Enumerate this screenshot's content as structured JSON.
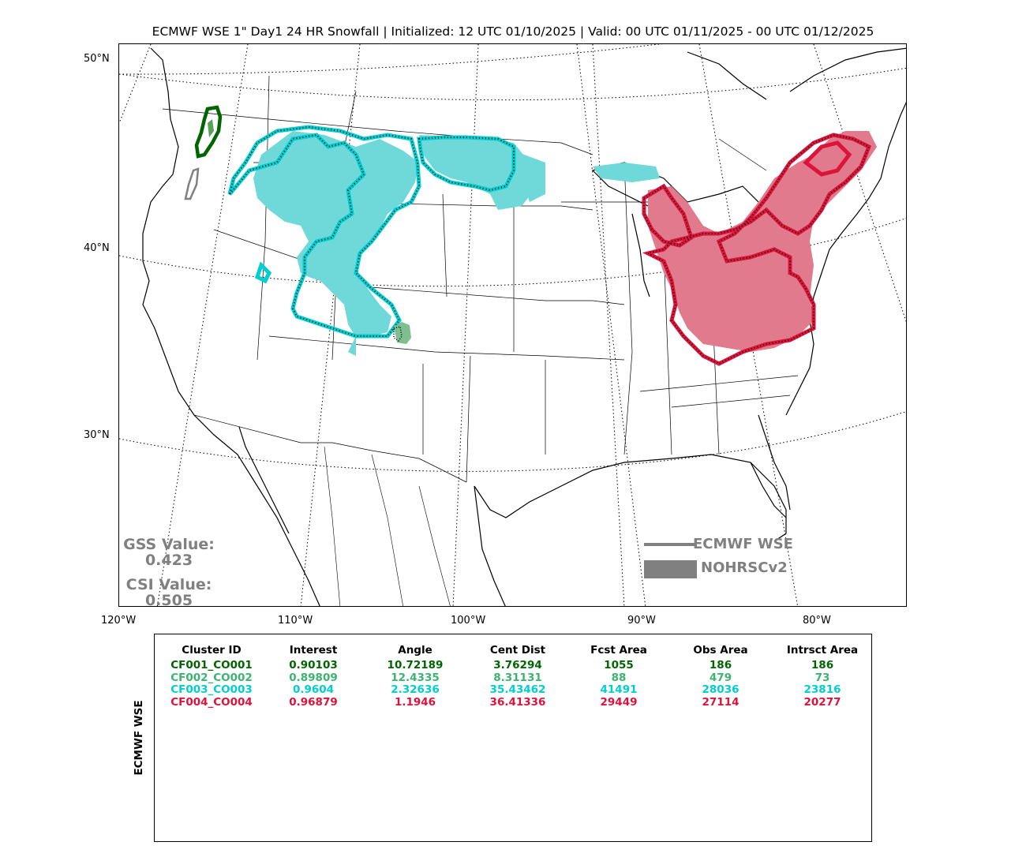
{
  "title": "ECMWF WSE 1\" Day1 24 HR Snowfall | Initialized: 12 UTC 01/10/2025 | Valid: 00 UTC 01/11/2025 - 00 UTC 01/12/2025",
  "axes": {
    "lat_labels": [
      "50°N",
      "40°N",
      "30°N"
    ],
    "lon_labels": [
      "120°W",
      "110°W",
      "100°W",
      "90°W",
      "80°W"
    ]
  },
  "stats": {
    "gss_label": "GSS Value:",
    "gss_value": "0.423",
    "csi_label": "CSI Value:",
    "csi_value": "0.505",
    "color": "#808080"
  },
  "legend": {
    "forecast_label": "ECMWF WSE",
    "observed_label": "NOHRSCv2",
    "color": "#808080"
  },
  "table": {
    "side_label": "ECMWF WSE",
    "headers": [
      "Cluster ID",
      "Interest",
      "Angle",
      "Cent Dist",
      "Fcst Area",
      "Obs Area",
      "Intrsct Area"
    ],
    "rows": [
      {
        "color": "#006400",
        "cells": [
          "CF001_CO001",
          "0.90103",
          "10.72189",
          "3.76294",
          "1055",
          "186",
          "186"
        ]
      },
      {
        "color": "#3cb371",
        "cells": [
          "CF002_CO002",
          "0.89809",
          "12.4335",
          "8.31131",
          "88",
          "479",
          "73"
        ]
      },
      {
        "color": "#00ced1",
        "cells": [
          "CF003_CO003",
          "0.9604",
          "2.32636",
          "35.43462",
          "41491",
          "28036",
          "23816"
        ]
      },
      {
        "color": "#dc143c",
        "cells": [
          "CF004_CO004",
          "0.96879",
          "1.1946",
          "36.41336",
          "29449",
          "27114",
          "20277"
        ]
      }
    ]
  },
  "clusters": {
    "cf001_color": "#006400",
    "cf002_color": "#3cb371",
    "cf003_color": "#00ced1",
    "cf004_color": "#dc143c",
    "unmatched_color": "#808080"
  }
}
